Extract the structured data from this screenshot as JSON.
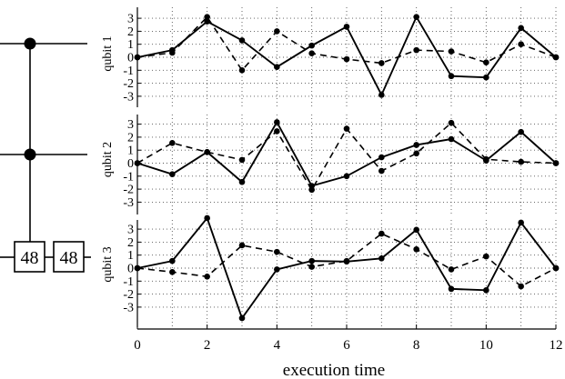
{
  "chart_data": {
    "type": "line",
    "xlabel": "execution time",
    "xlim": [
      0,
      12
    ],
    "x_ticks": [
      0,
      2,
      4,
      6,
      8,
      10,
      12
    ],
    "ylim": [
      -4,
      4
    ],
    "y_ticks": [
      3,
      2,
      1,
      0,
      -1,
      -2,
      -3
    ],
    "grid": true,
    "line_styles": {
      "solid": "solid",
      "dashed": "dashed"
    },
    "x": [
      0,
      1,
      2,
      3,
      4,
      5,
      6,
      7,
      8,
      9,
      10,
      11,
      12
    ],
    "panels": [
      {
        "ylabel": "qubit 1",
        "series": [
          {
            "style": "solid",
            "values": [
              0,
              0.55,
              2.75,
              1.3,
              -0.75,
              0.9,
              2.35,
              -2.9,
              3.1,
              -1.45,
              -1.55,
              2.25,
              0
            ]
          },
          {
            "style": "dashed",
            "values": [
              0,
              0.35,
              3.1,
              -1.0,
              2.0,
              0.3,
              -0.15,
              -0.45,
              0.55,
              0.45,
              -0.4,
              1.0,
              0
            ]
          }
        ]
      },
      {
        "ylabel": "qubit 2",
        "series": [
          {
            "style": "solid",
            "values": [
              0,
              -0.85,
              0.85,
              -1.45,
              3.15,
              -1.75,
              -1.0,
              0.45,
              1.4,
              1.85,
              0.2,
              2.4,
              0
            ]
          },
          {
            "style": "dashed",
            "values": [
              0,
              1.55,
              0.85,
              0.25,
              2.45,
              -2.05,
              2.65,
              -0.6,
              0.75,
              3.1,
              0.3,
              0.1,
              0
            ]
          }
        ]
      },
      {
        "ylabel": "qubit 3",
        "series": [
          {
            "style": "solid",
            "values": [
              0,
              0.55,
              3.85,
              -3.85,
              -0.1,
              0.55,
              0.5,
              0.75,
              2.95,
              -1.6,
              -1.7,
              3.5,
              0
            ]
          },
          {
            "style": "dashed",
            "values": [
              0,
              -0.3,
              -0.65,
              1.75,
              1.25,
              0.1,
              0.55,
              2.65,
              1.45,
              -0.1,
              0.9,
              -1.4,
              0
            ]
          }
        ]
      }
    ]
  },
  "circuit": {
    "gate_labels": [
      "48",
      "48"
    ],
    "controls": 2,
    "wires": 3
  }
}
